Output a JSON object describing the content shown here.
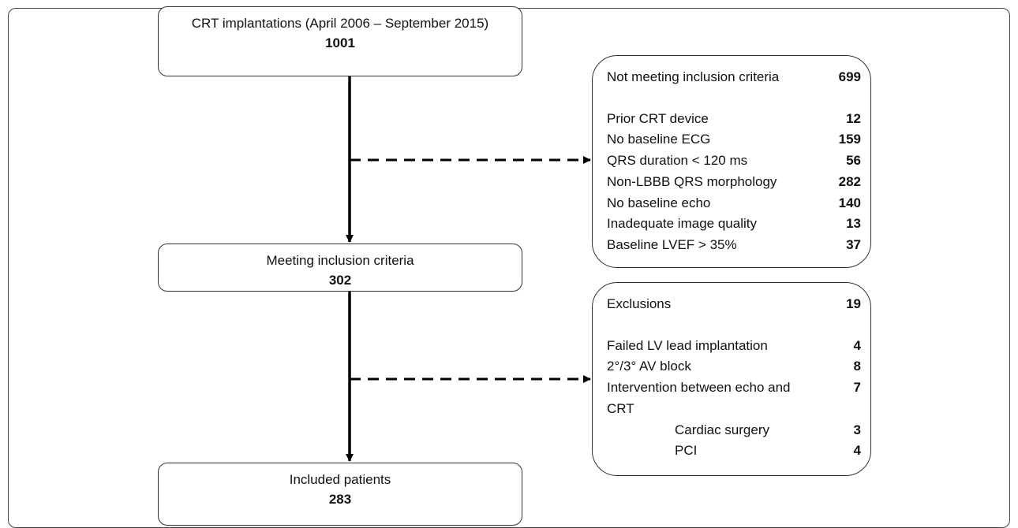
{
  "flow": {
    "main": [
      {
        "label": "CRT implantations (April 2006 – September 2015)",
        "count": 1001
      },
      {
        "label": "Meeting inclusion criteria",
        "count": 302
      },
      {
        "label": "Included patients",
        "count": 283
      }
    ],
    "side": [
      {
        "title": "Not meeting inclusion criteria",
        "count": 699,
        "items": [
          {
            "label": "Prior CRT device",
            "count": 12
          },
          {
            "label": "No baseline ECG",
            "count": 159
          },
          {
            "label": "QRS duration < 120 ms",
            "count": 56
          },
          {
            "label": "Non-LBBB QRS morphology",
            "count": 282
          },
          {
            "label": "No baseline echo",
            "count": 140
          },
          {
            "label": "Inadequate image quality",
            "count": 13
          },
          {
            "label": "Baseline LVEF > 35%",
            "count": 37
          }
        ]
      },
      {
        "title": "Exclusions",
        "count": 19,
        "items": [
          {
            "label": "Failed LV lead implantation",
            "count": 4
          },
          {
            "label": "2°/3° AV block",
            "count": 8
          },
          {
            "label": "Intervention between echo and CRT",
            "count": 7,
            "children": [
              {
                "label": "Cardiac surgery",
                "count": 3
              },
              {
                "label": "PCI",
                "count": 4
              }
            ]
          }
        ]
      }
    ]
  }
}
